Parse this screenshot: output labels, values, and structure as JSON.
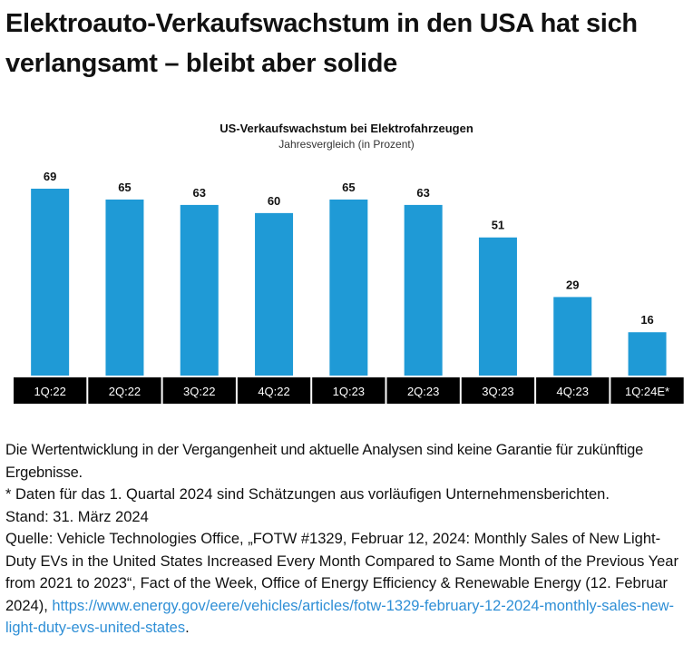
{
  "headline": "Elektroauto-Verkaufswachstum in den USA hat sich verlangsamt – bleibt aber solide",
  "chart_data": {
    "type": "bar",
    "title": "US-Verkaufswachstum bei Elektrofahrzeugen",
    "subtitle": "Jahresvergleich (in Prozent)",
    "categories": [
      "1Q:22",
      "2Q:22",
      "3Q:22",
      "4Q:22",
      "1Q:23",
      "2Q:23",
      "3Q:23",
      "4Q:23",
      "1Q:24E*"
    ],
    "values": [
      69,
      65,
      63,
      60,
      65,
      63,
      51,
      29,
      16
    ],
    "ylim": [
      0,
      70
    ],
    "grid": false,
    "bar_color": "#1f9ad6",
    "label_bg": "#000000"
  },
  "notes": {
    "disclaimer": "Die Wertentwicklung in der Vergangenheit und aktuelle Analysen sind keine Garantie für zukünftige Ergebnisse.",
    "footnote": "* Daten für das 1. Quartal 2024 sind Schätzungen aus vorläufigen Unternehmensberichten.",
    "stand": "Stand: 31. März 2024",
    "source": "Quelle: Vehicle Technologies Office, „FOTW #1329, Februar 12, 2024: Monthly Sales of New Light-Duty EVs in the United States Increased Every Month Compared to Same Month of the Previous Year from 2021 to 2023“, Fact of the Week, Office of Energy Efficiency & Renewable Energy (12. Februar 2024), ",
    "link": "https://www.energy.gov/eere/vehicles/articles/fotw-1329-february-12-2024-monthly-sales-new-light-duty-evs-united-states",
    "link_end": ".",
    "link_color": "#2f8fd6"
  }
}
